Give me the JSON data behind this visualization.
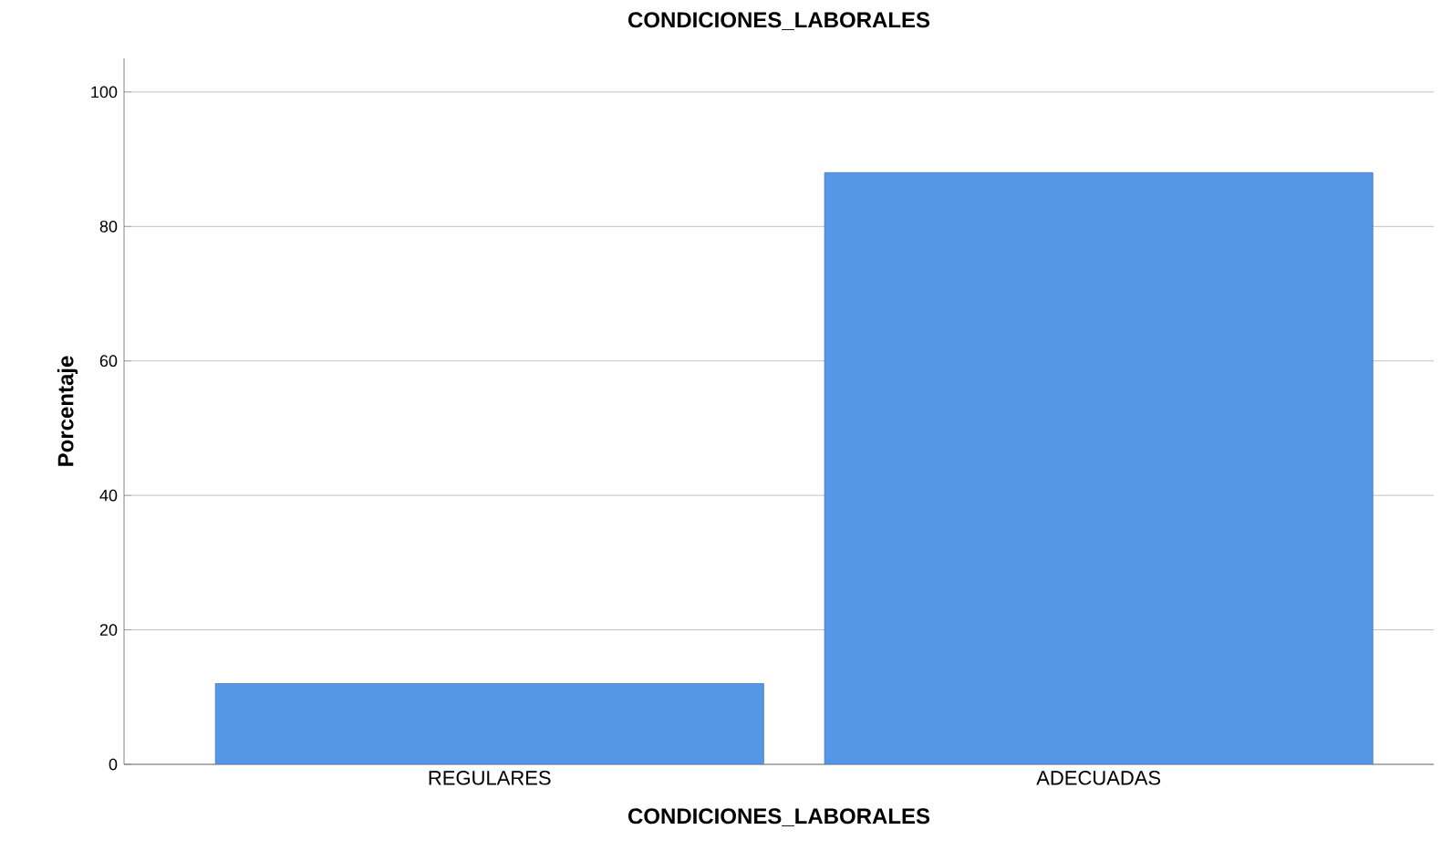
{
  "chart_data": {
    "type": "bar",
    "title": "CONDICIONES_LABORALES",
    "xlabel": "CONDICIONES_LABORALES",
    "ylabel": "Porcentaje",
    "categories": [
      "REGULARES",
      "ADECUADAS"
    ],
    "values": [
      12,
      88
    ],
    "color": "#5596e6",
    "ylim": [
      0,
      105
    ],
    "yticks": [
      0,
      20,
      40,
      60,
      80,
      100
    ],
    "grid": "y"
  }
}
